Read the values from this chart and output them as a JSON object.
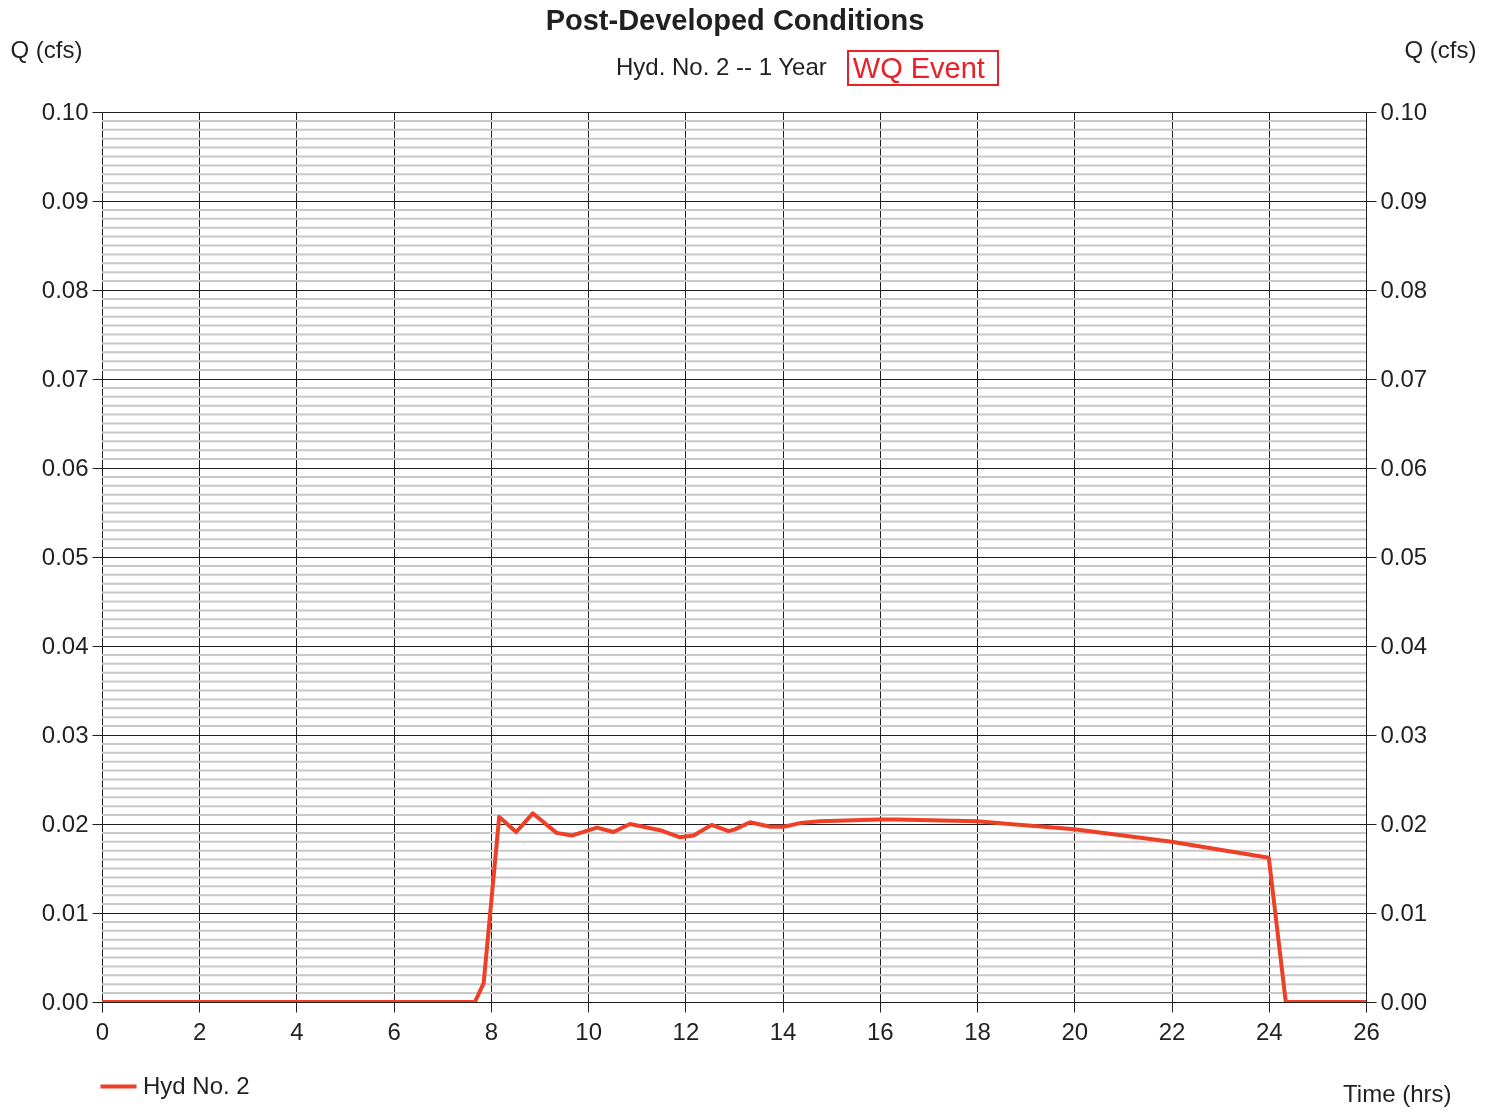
{
  "chart_data": {
    "type": "line",
    "title": "Post-Developed Conditions",
    "subtitle": "Hyd. No. 2 -- 1 Year",
    "annotations": [
      "WQ Event"
    ],
    "xlabel": "Time (hrs)",
    "ylabel": "Q (cfs)",
    "y2label": "Q (cfs)",
    "series": [
      {
        "name": "Hyd No. 2",
        "color": "#ee4027",
        "x": [
          0,
          7.67,
          7.85,
          8.17,
          8.52,
          8.86,
          9.35,
          9.66,
          10.18,
          10.52,
          10.86,
          11.48,
          11.89,
          12.17,
          12.54,
          12.89,
          13.02,
          13.33,
          13.74,
          14.02,
          14.36,
          14.77,
          16.0,
          16.33,
          18.0,
          20.0,
          22.0,
          24.0,
          24.35,
          26.0
        ],
        "values": [
          0,
          0,
          0.0021,
          0.0208,
          0.0191,
          0.0212,
          0.019,
          0.0187,
          0.0196,
          0.0191,
          0.02,
          0.0193,
          0.0185,
          0.0187,
          0.0199,
          0.0192,
          0.0194,
          0.0202,
          0.0197,
          0.0197,
          0.0201,
          0.0203,
          0.0205,
          0.0205,
          0.0203,
          0.0194,
          0.018,
          0.0162,
          0,
          0
        ]
      }
    ],
    "xlim": [
      0,
      26
    ],
    "xticks": [
      0,
      2,
      4,
      6,
      8,
      10,
      12,
      14,
      16,
      18,
      20,
      22,
      24,
      26
    ],
    "ylim": [
      0,
      0.1
    ],
    "yticks": [
      {
        "value": 0,
        "label": "0.00"
      },
      {
        "value": 0.01,
        "label": "0.01"
      },
      {
        "value": 0.02,
        "label": "0.02"
      },
      {
        "value": 0.03,
        "label": "0.03"
      },
      {
        "value": 0.04,
        "label": "0.04"
      },
      {
        "value": 0.05,
        "label": "0.05"
      },
      {
        "value": 0.06,
        "label": "0.06"
      },
      {
        "value": 0.07,
        "label": "0.07"
      },
      {
        "value": 0.08,
        "label": "0.08"
      },
      {
        "value": 0.09,
        "label": "0.09"
      },
      {
        "value": 0.1,
        "label": "0.10"
      }
    ],
    "y2lim": [
      0,
      0.1
    ],
    "y2ticks": [
      {
        "value": 0,
        "label": "0.00"
      },
      {
        "value": 0.01,
        "label": "0.01"
      },
      {
        "value": 0.02,
        "label": "0.02"
      },
      {
        "value": 0.03,
        "label": "0.03"
      },
      {
        "value": 0.04,
        "label": "0.04"
      },
      {
        "value": 0.05,
        "label": "0.05"
      },
      {
        "value": 0.06,
        "label": "0.06"
      },
      {
        "value": 0.07,
        "label": "0.07"
      },
      {
        "value": 0.08,
        "label": "0.08"
      },
      {
        "value": 0.09,
        "label": "0.09"
      },
      {
        "value": 0.1,
        "label": "0.10"
      }
    ],
    "grid": true,
    "legend": "bottom left",
    "marker": "none",
    "line_style": "solid"
  }
}
